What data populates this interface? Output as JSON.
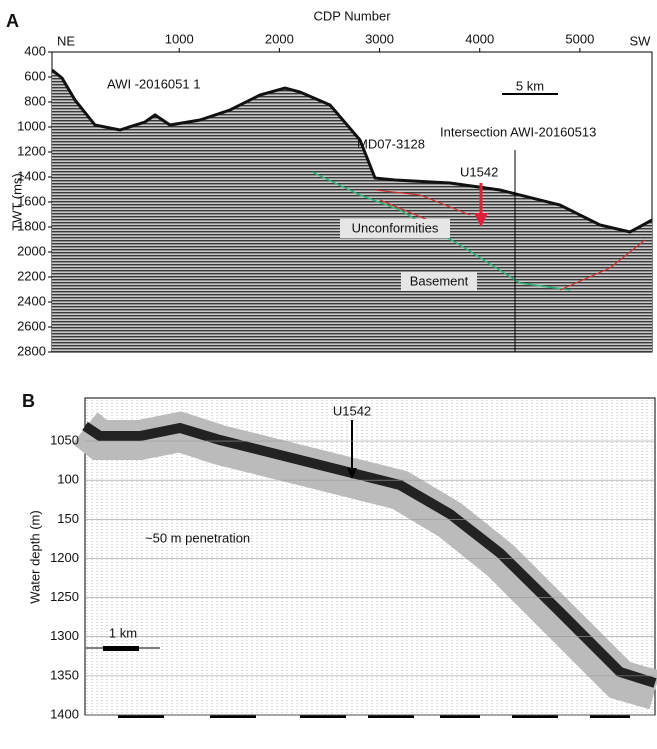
{
  "chart_data": [
    {
      "type": "seismic",
      "panel": "A",
      "title": "CDP Number",
      "y_label": "TWT (ms)",
      "xlim": [
        -270,
        5720
      ],
      "xticks": [
        1000,
        2000,
        3000,
        4000,
        5000
      ],
      "ylim": [
        400,
        2800
      ],
      "yticks": [
        400,
        600,
        800,
        1000,
        1200,
        1400,
        1600,
        1800,
        2000,
        2200,
        2400,
        2600,
        2800
      ],
      "ends": [
        "NE",
        "SW"
      ],
      "annotations": [
        "AWI -2016051  1",
        "5 km",
        "MD07-3128",
        "Intersection AWI-20160513",
        "U1542",
        "Unconformities",
        "Basement"
      ]
    },
    {
      "type": "echogram",
      "panel": "B",
      "y_label": "Water depth (m)",
      "ylim": [
        995,
        1400
      ],
      "yticks": [
        1050,
        {
          "value": 1100,
          "label": "100"
        },
        {
          "value": 1150,
          "label": "150"
        },
        1200,
        1250,
        1300,
        1350,
        1400
      ],
      "annotations": [
        "U1542",
        "~50 m penetration",
        "1 km"
      ]
    }
  ]
}
